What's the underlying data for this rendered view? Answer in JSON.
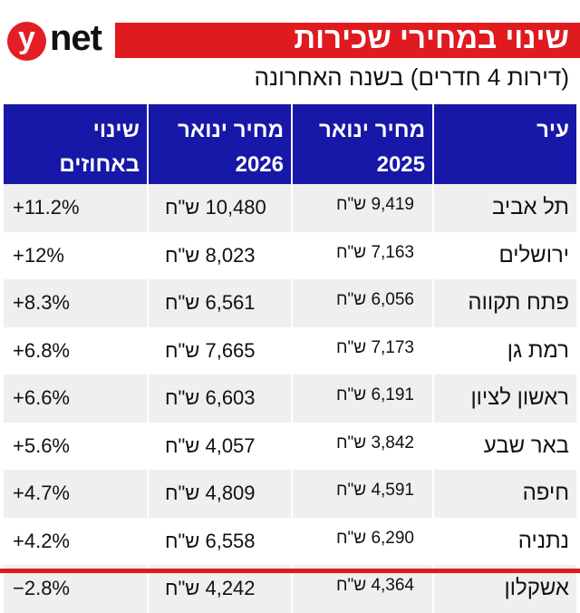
{
  "logo": {
    "y": "y",
    "net": "net"
  },
  "title": "שינוי במחירי שכירות",
  "subtitle": "(דירות 4 חדרים) בשנה האחרונה",
  "colors": {
    "brand_red": "#df1b1f",
    "header_blue": "#1717a8"
  },
  "table": {
    "headers": {
      "city": "עיר",
      "price2025_l1": "מחיר ינואר",
      "price2025_l2": "2025",
      "price2026_l1": "מחיר ינואר",
      "price2026_l2": "2026",
      "change_l1": "שינוי",
      "change_l2": "באחוזים"
    },
    "rows": [
      {
        "city": "תל אביב",
        "p2025": "9,419 ש\"ח",
        "p2026": "10,480 ש\"ח",
        "change": "+11.2%"
      },
      {
        "city": "ירושלים",
        "p2025": "7,163 ש\"ח",
        "p2026": "8,023 ש\"ח",
        "change": "+12%"
      },
      {
        "city": "פתח תקווה",
        "p2025": "6,056 ש\"ח",
        "p2026": "6,561 ש\"ח",
        "change": "+8.3%"
      },
      {
        "city": "רמת גן",
        "p2025": "7,173 ש\"ח",
        "p2026": "7,665 ש\"ח",
        "change": "+6.8%"
      },
      {
        "city": "ראשון לציון",
        "p2025": "6,191 ש\"ח",
        "p2026": "6,603 ש\"ח",
        "change": "+6.6%"
      },
      {
        "city": "באר שבע",
        "p2025": "3,842 ש\"ח",
        "p2026": "4,057 ש\"ח",
        "change": "+5.6%"
      },
      {
        "city": "חיפה",
        "p2025": "4,591 ש\"ח",
        "p2026": "4,809 ש\"ח",
        "change": "+4.7%"
      },
      {
        "city": "נתניה",
        "p2025": "6,290 ש\"ח",
        "p2026": "6,558 ש\"ח",
        "change": "+4.2%"
      },
      {
        "city": "אשקלון",
        "p2025": "4,364 ש\"ח",
        "p2026": "4,242 ש\"ח",
        "change": "−2.8%"
      }
    ]
  }
}
